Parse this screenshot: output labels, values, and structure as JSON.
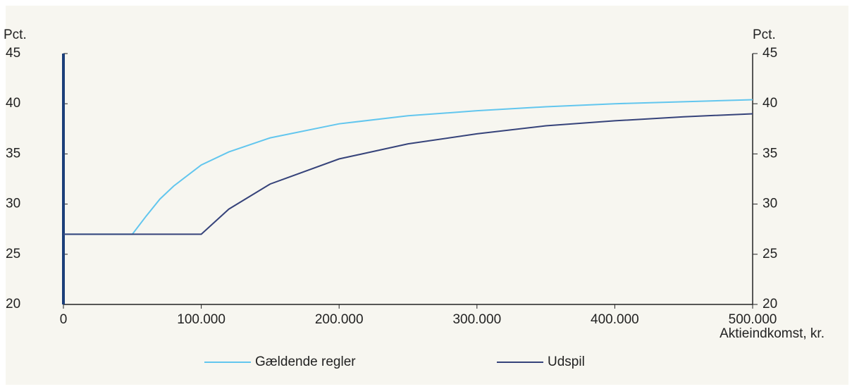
{
  "chart_data": {
    "type": "line",
    "ylabel": "Pct.",
    "y2label": "Pct.",
    "xlabel": "Aktieindkomst, kr.",
    "x": [
      0,
      50000,
      60000,
      70000,
      80000,
      100000,
      120000,
      150000,
      200000,
      250000,
      300000,
      350000,
      400000,
      450000,
      500000
    ],
    "series": [
      {
        "name": "Gældende regler",
        "color": "#62c6ee",
        "values": [
          27,
          27,
          28.8,
          30.5,
          31.8,
          33.9,
          35.2,
          36.6,
          38,
          38.8,
          39.3,
          39.7,
          40,
          40.2,
          40.4
        ]
      },
      {
        "name": "Udspil",
        "color": "#36437a",
        "values": [
          27,
          27,
          27,
          27,
          27,
          27,
          29.5,
          32,
          34.5,
          36,
          37,
          37.8,
          38.3,
          38.7,
          39
        ]
      }
    ],
    "xlim": [
      0,
      500000
    ],
    "xticks": [
      0,
      {
        "value": 100000,
        "label": "100.000"
      },
      {
        "value": 200000,
        "label": "200.000"
      },
      {
        "value": 300000,
        "label": "300.000"
      },
      {
        "value": 400000,
        "label": "400.000"
      },
      {
        "value": 500000,
        "label": "500.000"
      }
    ],
    "ylim": [
      20,
      45
    ],
    "yticks": [
      20,
      25,
      30,
      35,
      40,
      45
    ],
    "y2lim": [
      20,
      45
    ],
    "y2ticks": [
      20,
      25,
      30,
      35,
      40,
      45
    ],
    "legend": "bottom"
  }
}
